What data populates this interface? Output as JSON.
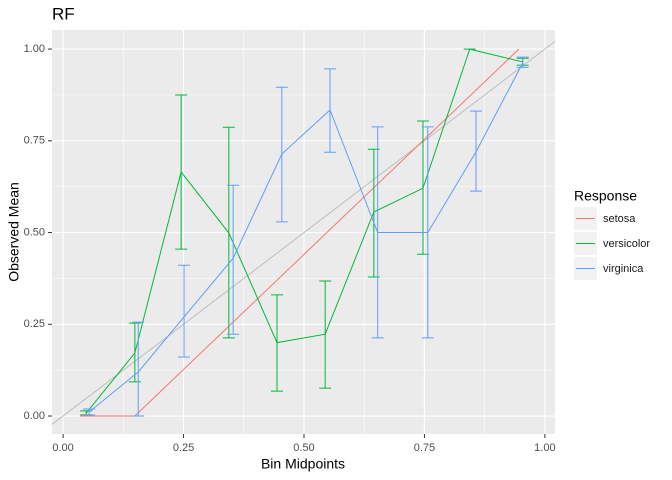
{
  "chart_data": {
    "type": "line",
    "title": "RF",
    "xlabel": "Bin Midpoints",
    "ylabel": "Observed Mean",
    "legend_title": "Response",
    "legend_position": "right",
    "grid": true,
    "xlim": [
      -0.023,
      1.021
    ],
    "ylim": [
      -0.049,
      1.052
    ],
    "xticks": [
      {
        "value": 0,
        "label": "0.00"
      },
      {
        "value": 0.25,
        "label": "0.25"
      },
      {
        "value": 0.5,
        "label": "0.50"
      },
      {
        "value": 0.75,
        "label": "0.75"
      },
      {
        "value": 1,
        "label": "1.00"
      }
    ],
    "yticks": [
      {
        "value": 0,
        "label": "0.00"
      },
      {
        "value": 0.25,
        "label": "0.25"
      },
      {
        "value": 0.5,
        "label": "0.50"
      },
      {
        "value": 0.75,
        "label": "0.75"
      },
      {
        "value": 1,
        "label": "1.00"
      }
    ],
    "series": [
      {
        "name": "setosa",
        "color": "#F8766D",
        "x": [
          0.035,
          0.149,
          0.946
        ],
        "values": [
          0,
          0,
          1
        ]
      },
      {
        "name": "versicolor",
        "color": "#00BA38",
        "x": [
          0.048,
          0.149,
          0.245,
          0.344,
          0.444,
          0.544,
          0.645,
          0.747,
          0.844,
          0.954
        ],
        "values": [
          0.008,
          0.172,
          0.665,
          0.499,
          0.2,
          0.223,
          0.556,
          0.621,
          1,
          0.965
        ],
        "lower": [
          0.003,
          0.093,
          0.455,
          0.213,
          0.068,
          0.076,
          0.379,
          0.441,
          1,
          0.956
        ],
        "upper": [
          0.014,
          0.253,
          0.875,
          0.787,
          0.33,
          0.368,
          0.727,
          0.804,
          1,
          0.975
        ]
      },
      {
        "name": "virginica",
        "color": "#619CFF",
        "x": [
          0.054,
          0.156,
          0.251,
          0.353,
          0.454,
          0.554,
          0.653,
          0.757,
          0.857,
          0.954
        ],
        "values": [
          0.011,
          0.12,
          0.27,
          0.43,
          0.714,
          0.834,
          0.5,
          0.5,
          0.72,
          0.962
        ],
        "lower": [
          0.003,
          0,
          0.161,
          0.223,
          0.529,
          0.719,
          0.213,
          0.213,
          0.613,
          0.95
        ],
        "upper": [
          0.019,
          0.256,
          0.411,
          0.629,
          0.896,
          0.946,
          0.788,
          0.788,
          0.831,
          0.978
        ]
      }
    ]
  }
}
